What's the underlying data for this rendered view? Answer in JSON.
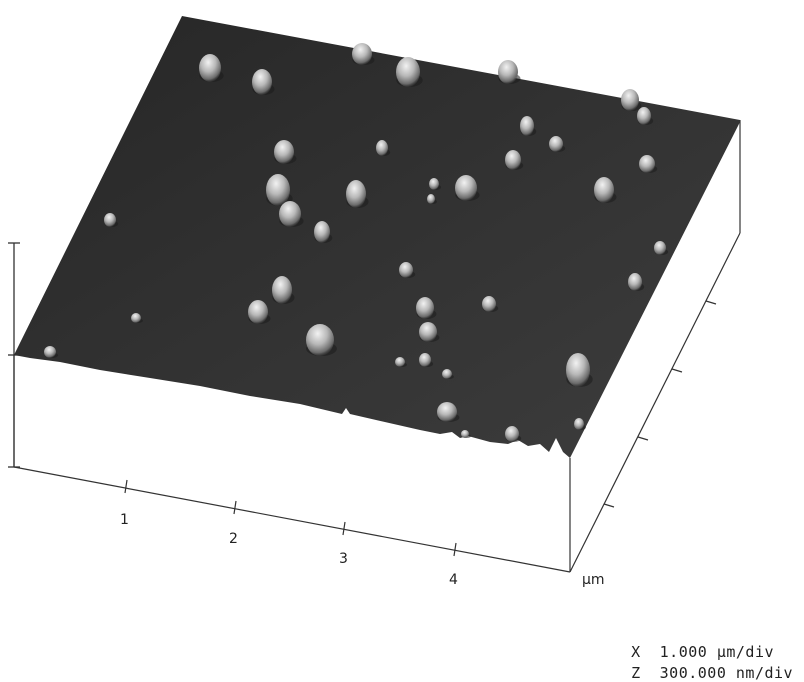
{
  "figure": {
    "x_axis": {
      "ticks": [
        "1",
        "2",
        "3",
        "4"
      ],
      "unit": "µm"
    },
    "scale": {
      "x": {
        "symbol": "X",
        "value": "1.000 µm/div"
      },
      "z": {
        "symbol": "Z",
        "value": "300.000 nm/div"
      }
    },
    "colors": {
      "surface_dark": "#2b2b2b",
      "surface_light": "#3a3a3a",
      "peak_highlight": "#e6e6e6",
      "axis": "#333333",
      "background": "#ffffff"
    }
  }
}
